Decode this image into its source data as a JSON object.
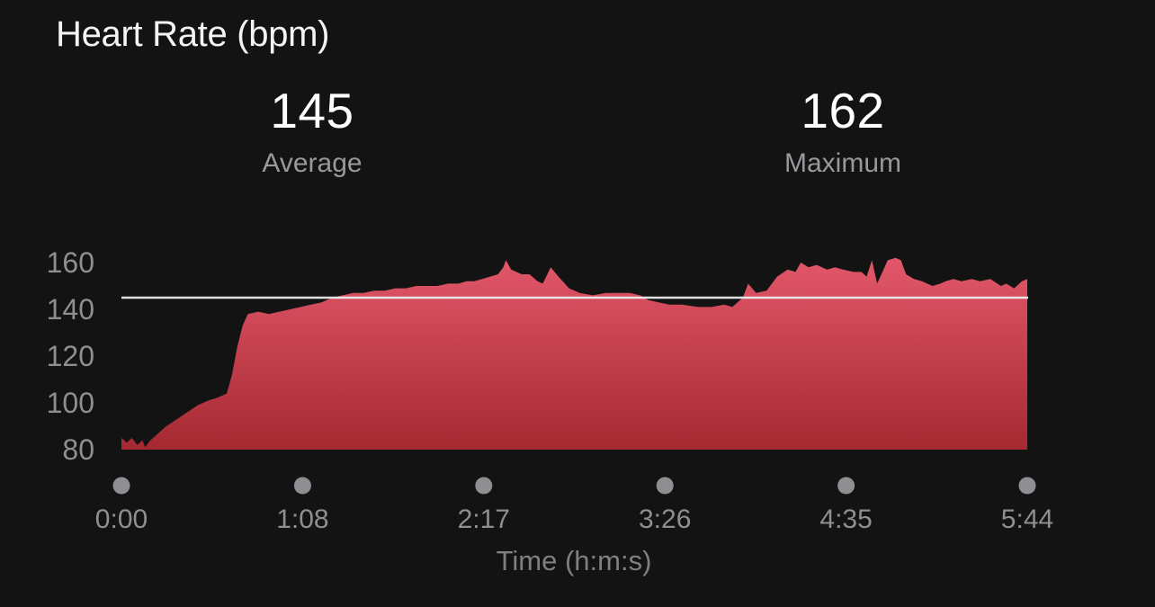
{
  "title": "Heart Rate (bpm)",
  "stats": [
    {
      "value": "145",
      "label": "Average"
    },
    {
      "value": "162",
      "label": "Maximum"
    }
  ],
  "colors": {
    "background": "#131313",
    "title_text": "#f4f4f4",
    "stat_value_text": "#ffffff",
    "stat_label_text": "#98989d",
    "tick_label_text": "#8e8e93",
    "axis_title_text": "#7f7f84",
    "tick_dot": "#8e8e93",
    "average_line": "#eceaec",
    "area_gradient_top": "#e4596c",
    "area_gradient_bottom": "#a52931"
  },
  "chart_data": {
    "type": "area",
    "title": "Heart Rate (bpm)",
    "xlabel": "Time (h:m:s)",
    "ylabel": "",
    "grid": false,
    "legend": "none",
    "ylim": [
      80,
      165
    ],
    "yticks": [
      80,
      100,
      120,
      140,
      160
    ],
    "xlim_seconds": [
      0,
      344
    ],
    "xtick_labels": [
      "0:00",
      "1:08",
      "2:17",
      "3:26",
      "4:35",
      "5:44"
    ],
    "xtick_seconds": [
      0,
      68.8,
      137.6,
      206.4,
      275.2,
      344
    ],
    "average_line_bpm": 145,
    "max_bpm": 162,
    "series": [
      {
        "name": "Heart Rate",
        "unit": "bpm",
        "points": [
          [
            0,
            85
          ],
          [
            2,
            83
          ],
          [
            4,
            85
          ],
          [
            6,
            82
          ],
          [
            8,
            84
          ],
          [
            9,
            81
          ],
          [
            11,
            84
          ],
          [
            14,
            87
          ],
          [
            17,
            90
          ],
          [
            21,
            93
          ],
          [
            25,
            96
          ],
          [
            29,
            99
          ],
          [
            33,
            101
          ],
          [
            36,
            102
          ],
          [
            40,
            104
          ],
          [
            42,
            112
          ],
          [
            44,
            124
          ],
          [
            46,
            133
          ],
          [
            48,
            138
          ],
          [
            52,
            139
          ],
          [
            56,
            138
          ],
          [
            60,
            139
          ],
          [
            64,
            140
          ],
          [
            68,
            141
          ],
          [
            72,
            142
          ],
          [
            76,
            143
          ],
          [
            80,
            145
          ],
          [
            84,
            146
          ],
          [
            88,
            147
          ],
          [
            92,
            147
          ],
          [
            96,
            148
          ],
          [
            100,
            148
          ],
          [
            104,
            149
          ],
          [
            108,
            149
          ],
          [
            112,
            150
          ],
          [
            116,
            150
          ],
          [
            120,
            150
          ],
          [
            124,
            151
          ],
          [
            128,
            151
          ],
          [
            131,
            152
          ],
          [
            134,
            152
          ],
          [
            137,
            153
          ],
          [
            140,
            154
          ],
          [
            143,
            155
          ],
          [
            145,
            158
          ],
          [
            146,
            161
          ],
          [
            148,
            157
          ],
          [
            152,
            155
          ],
          [
            155,
            155
          ],
          [
            158,
            152
          ],
          [
            160,
            151
          ],
          [
            163,
            158
          ],
          [
            166,
            154
          ],
          [
            170,
            149
          ],
          [
            174,
            147
          ],
          [
            179,
            146
          ],
          [
            184,
            147
          ],
          [
            189,
            147
          ],
          [
            193,
            147
          ],
          [
            197,
            146
          ],
          [
            200,
            144
          ],
          [
            204,
            143
          ],
          [
            208,
            142
          ],
          [
            213,
            142
          ],
          [
            219,
            141
          ],
          [
            224,
            141
          ],
          [
            229,
            142
          ],
          [
            232,
            141
          ],
          [
            236,
            145
          ],
          [
            238,
            151
          ],
          [
            241,
            147
          ],
          [
            245,
            148
          ],
          [
            249,
            154
          ],
          [
            253,
            157
          ],
          [
            256,
            156
          ],
          [
            258,
            160
          ],
          [
            261,
            158
          ],
          [
            264,
            159
          ],
          [
            268,
            157
          ],
          [
            271,
            158
          ],
          [
            274,
            157
          ],
          [
            278,
            156
          ],
          [
            281,
            156
          ],
          [
            283,
            154
          ],
          [
            285,
            161
          ],
          [
            287,
            151
          ],
          [
            289,
            156
          ],
          [
            291,
            161
          ],
          [
            294,
            162
          ],
          [
            296,
            161
          ],
          [
            298,
            155
          ],
          [
            301,
            153
          ],
          [
            304,
            152
          ],
          [
            308,
            150
          ],
          [
            311,
            151
          ],
          [
            313,
            152
          ],
          [
            316,
            153
          ],
          [
            319,
            152
          ],
          [
            323,
            153
          ],
          [
            326,
            152
          ],
          [
            330,
            153
          ],
          [
            334,
            150
          ],
          [
            336,
            151
          ],
          [
            339,
            149
          ],
          [
            342,
            152
          ],
          [
            344,
            153
          ]
        ]
      }
    ]
  }
}
